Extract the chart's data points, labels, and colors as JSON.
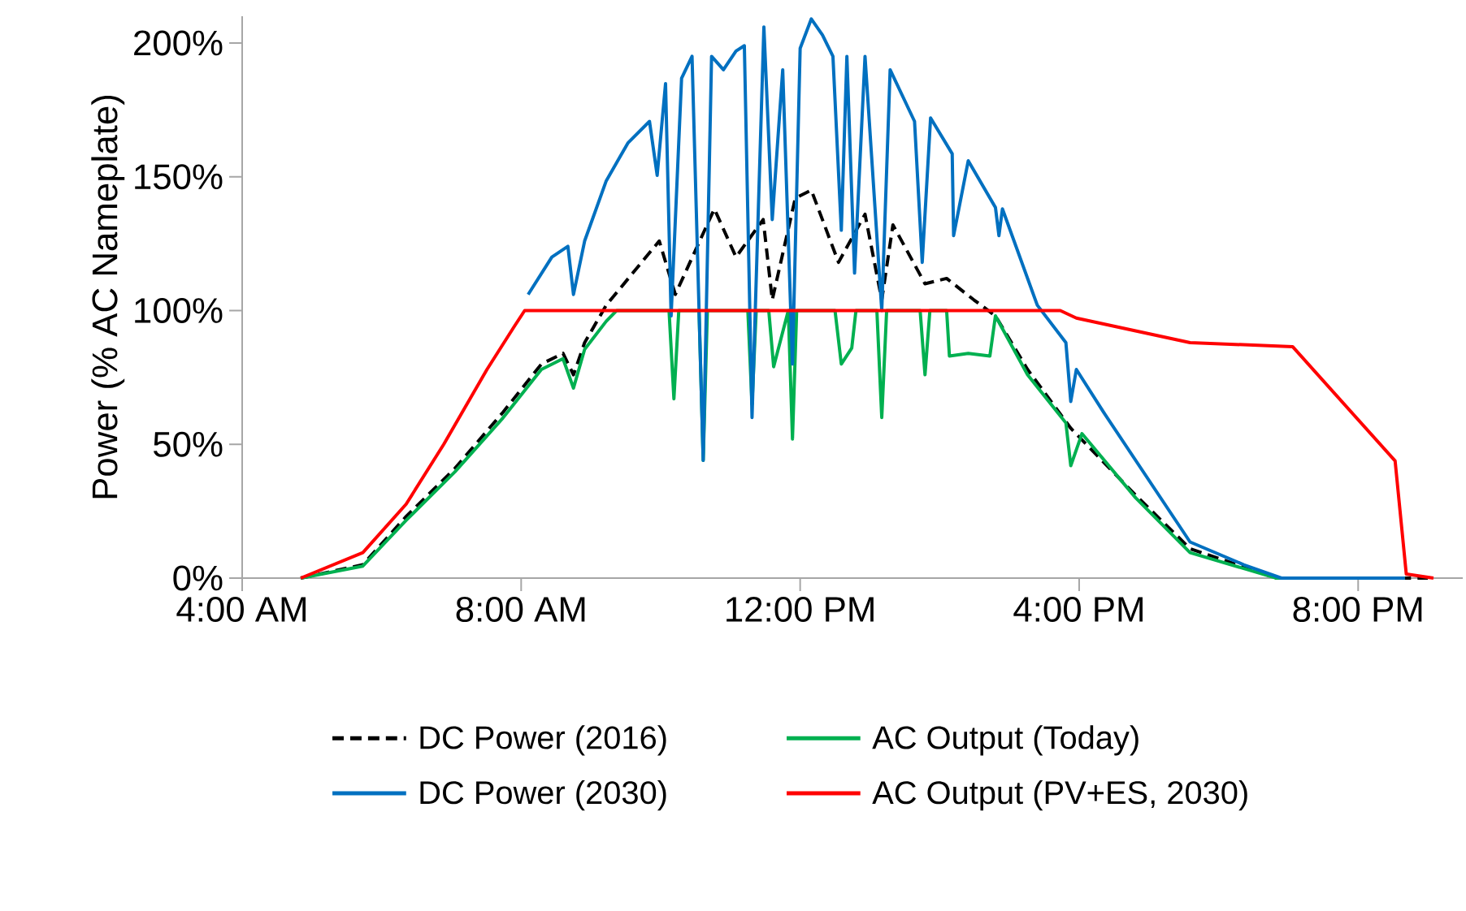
{
  "chart_data": {
    "type": "line",
    "ylabel": "Power (% AC Nameplate)",
    "xlim": [
      4,
      21.5
    ],
    "ylim": [
      0,
      210
    ],
    "xticks": [
      {
        "value": 4,
        "label": "4:00 AM"
      },
      {
        "value": 8,
        "label": "8:00 AM"
      },
      {
        "value": 12,
        "label": "12:00 PM"
      },
      {
        "value": 16,
        "label": "4:00 PM"
      },
      {
        "value": 20,
        "label": "8:00 PM"
      }
    ],
    "yticks": [
      {
        "value": 0,
        "label": "0%"
      },
      {
        "value": 50,
        "label": "50%"
      },
      {
        "value": 100,
        "label": "100%"
      },
      {
        "value": 150,
        "label": "150%"
      },
      {
        "value": 200,
        "label": "200%"
      }
    ],
    "grid": false,
    "legend": "bottom",
    "marker": "none",
    "series": [
      {
        "name": "DC Power (2016)",
        "color": "#000000",
        "line_style": "dashed",
        "x": [
          4.84,
          5.73,
          6.35,
          7.05,
          7.74,
          8.29,
          8.6,
          8.75,
          8.91,
          9.22,
          9.6,
          9.98,
          10.21,
          10.77,
          11.08,
          11.47,
          11.6,
          11.93,
          12.16,
          12.55,
          12.93,
          13.17,
          13.33,
          13.79,
          14.1,
          14.49,
          14.8,
          15.26,
          15.88,
          16.81,
          17.59,
          18.83,
          21.0
        ],
        "values": [
          0,
          5,
          23,
          41,
          62,
          80,
          84,
          76,
          88,
          102,
          114,
          126,
          106,
          138,
          120,
          134,
          104,
          142,
          145,
          118,
          136,
          104,
          132,
          110,
          112,
          104,
          98,
          78,
          56,
          31,
          11,
          0,
          0
        ]
      },
      {
        "name": "AC Output (Today)",
        "color": "#00b050",
        "line_style": "solid",
        "x": [
          4.84,
          5.73,
          6.35,
          7.05,
          7.74,
          8.29,
          8.6,
          8.75,
          8.91,
          9.22,
          9.37,
          10.12,
          10.19,
          10.26,
          10.55,
          10.61,
          10.67,
          11.25,
          11.31,
          11.37,
          11.55,
          11.62,
          11.83,
          11.89,
          11.95,
          12.5,
          12.59,
          12.74,
          12.8,
          13.1,
          13.17,
          13.24,
          13.72,
          13.79,
          13.86,
          14.1,
          14.14,
          14.41,
          14.72,
          14.8,
          15.26,
          15.81,
          15.88,
          16.04,
          16.81,
          17.59,
          18.83,
          20.67
        ],
        "values": [
          0,
          4.5,
          21.6,
          39.7,
          59.9,
          78,
          82,
          71,
          85.5,
          96,
          100,
          100,
          67,
          100,
          100,
          44,
          100,
          100,
          65,
          100,
          100,
          79,
          100,
          52,
          100,
          100,
          80,
          86,
          100,
          100,
          60,
          100,
          100,
          76,
          100,
          100,
          83,
          84,
          83,
          98,
          76,
          58,
          42,
          54,
          30,
          9.5,
          0,
          0
        ]
      },
      {
        "name": "DC Power (2030)",
        "color": "#0070c0",
        "line_style": "solid",
        "x": [
          8.1,
          8.44,
          8.67,
          8.75,
          8.91,
          9.22,
          9.53,
          9.84,
          9.95,
          10.07,
          10.15,
          10.3,
          10.45,
          10.61,
          10.73,
          10.9,
          11.08,
          11.2,
          11.31,
          11.48,
          11.6,
          11.75,
          11.89,
          12.0,
          12.16,
          12.32,
          12.47,
          12.59,
          12.67,
          12.78,
          12.93,
          13.17,
          13.29,
          13.64,
          13.75,
          13.87,
          14.18,
          14.2,
          14.41,
          14.8,
          14.85,
          14.9,
          15.4,
          15.81,
          15.88,
          15.96,
          16.35,
          17.59,
          18.36,
          18.9,
          20.67
        ],
        "values": [
          106,
          120,
          124,
          106,
          126,
          148.5,
          162.6,
          170.7,
          150.5,
          184.8,
          98,
          186.8,
          195,
          44,
          195,
          190,
          197,
          199,
          60,
          206,
          134,
          190,
          80,
          198,
          209,
          203,
          195,
          130,
          195,
          114,
          195,
          100,
          190,
          170.7,
          118,
          172,
          158.6,
          128,
          156,
          138.5,
          128,
          138,
          102,
          88,
          66,
          78,
          62,
          13.5,
          5,
          0,
          0
        ]
      },
      {
        "name": "AC Output (PV+ES, 2030)",
        "color": "#ff0000",
        "line_style": "solid",
        "x": [
          4.84,
          5.73,
          6.35,
          6.89,
          7.51,
          7.9,
          8.05,
          15.73,
          15.96,
          17.59,
          19.06,
          20.53,
          20.69,
          21.08
        ],
        "values": [
          0,
          9.5,
          27.6,
          50,
          78,
          94,
          100,
          100,
          97.2,
          88,
          86.5,
          43.8,
          1.5,
          0
        ]
      }
    ]
  }
}
